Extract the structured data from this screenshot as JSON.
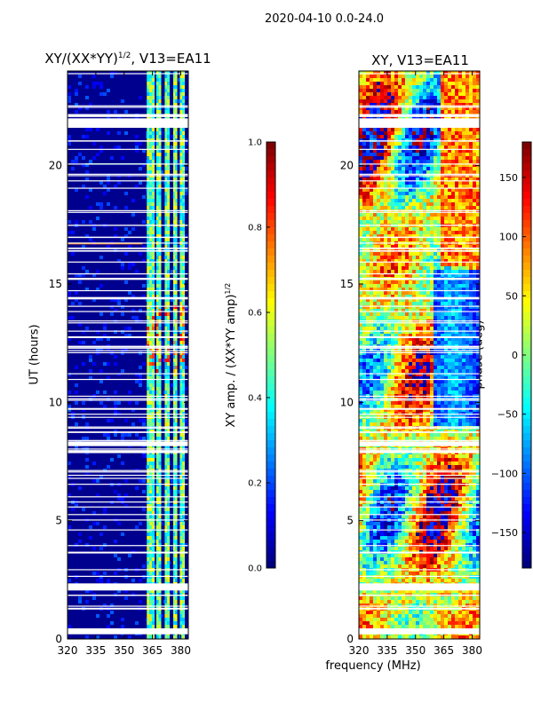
{
  "suptitle": "2020-04-10 0.0-24.0",
  "panels": {
    "left": {
      "title_main": "XY/(XX*YY)",
      "title_sup": "1/2",
      "title_tail": ", V13=EA11"
    },
    "right": {
      "title": "XY, V13=EA11"
    }
  },
  "ylabel": "UT (hours)",
  "xlabel": "frequency (MHz)",
  "cbar_left": {
    "label": "XY amp. / (XX*YY amp)",
    "label_sup": "1/2"
  },
  "cbar_right": {
    "label": "phase (deg)"
  },
  "chart_data": [
    {
      "type": "heatmap",
      "title": "XY/(XX*YY)^1/2, V13=EA11",
      "xlabel": "frequency (MHz)",
      "ylabel": "UT (hours)",
      "xlim": [
        320,
        384
      ],
      "ylim": [
        0,
        24
      ],
      "xticks": [
        320,
        335,
        350,
        365,
        380
      ],
      "yticks": [
        0,
        5,
        10,
        15,
        20
      ],
      "colorbar": {
        "label": "XY amp. / (XX*YY amp)^1/2",
        "range": [
          0.0,
          1.0
        ],
        "ticks": [
          "0.0",
          "0.2",
          "0.4",
          "0.6",
          "0.8",
          "1.0"
        ],
        "colormap": "jet"
      },
      "bright_channels_mhz": [
        [
          362,
          366
        ],
        [
          367,
          369.5
        ],
        [
          371.5,
          374
        ],
        [
          376,
          378
        ],
        [
          379.5,
          382
        ]
      ],
      "flagged_bands_ut": [
        [
          0.2,
          0.45
        ],
        [
          2.05,
          2.35
        ],
        [
          8.15,
          8.35
        ],
        [
          14.35,
          14.45
        ],
        [
          21.6,
          22.0
        ]
      ]
    },
    {
      "type": "heatmap",
      "title": "XY, V13=EA11",
      "xlabel": "frequency (MHz)",
      "ylabel": "UT (hours)",
      "xlim": [
        320,
        384
      ],
      "ylim": [
        0,
        24
      ],
      "xticks": [
        320,
        335,
        350,
        365,
        380
      ],
      "yticks": [
        0,
        5,
        10,
        15,
        20
      ],
      "colorbar": {
        "label": "phase (deg)",
        "range": [
          -180,
          180
        ],
        "ticks": [
          "150",
          "100",
          "50",
          "0",
          "−50",
          "−100",
          "−150"
        ],
        "colormap": "jet"
      },
      "flagged_bands_ut": [
        [
          0.2,
          0.45
        ],
        [
          2.05,
          2.35
        ],
        [
          8.15,
          8.35
        ],
        [
          14.35,
          14.45
        ],
        [
          21.6,
          22.0
        ]
      ]
    }
  ],
  "colors": {
    "white": "#ffffff",
    "dark_blue": "#00008f"
  }
}
